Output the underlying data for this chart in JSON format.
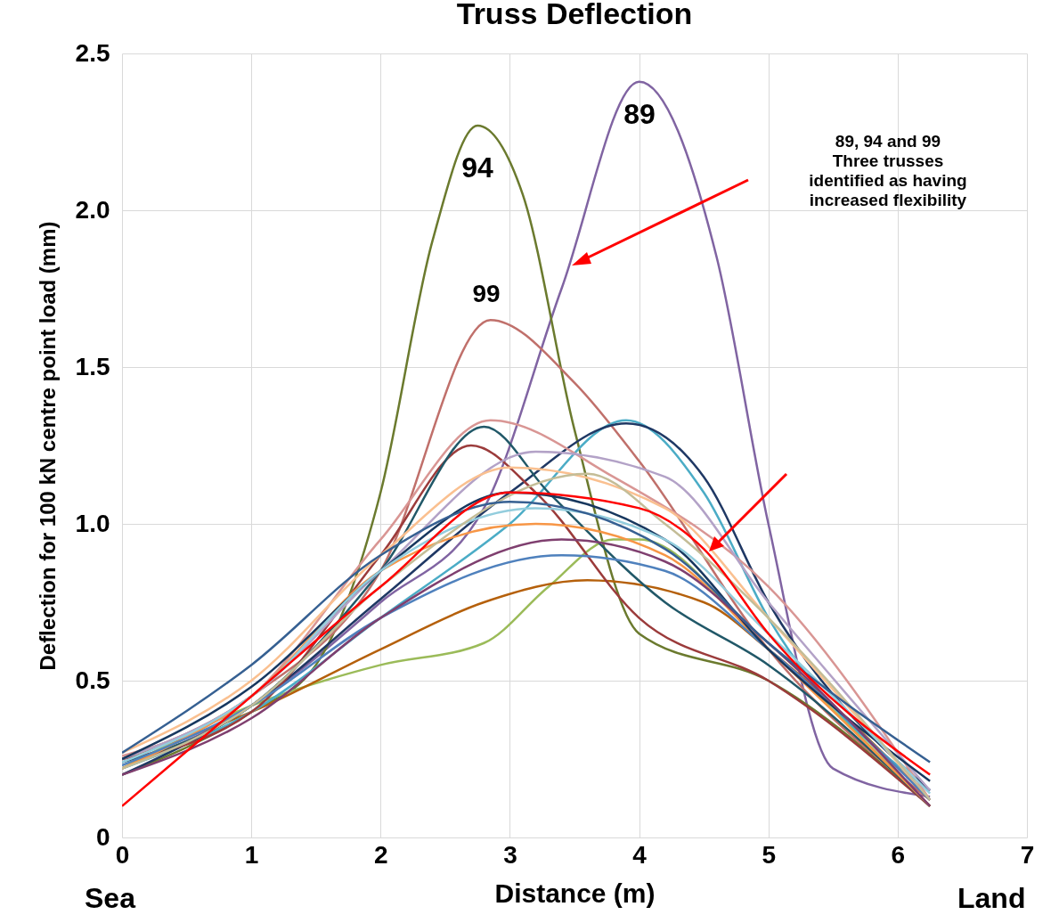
{
  "chart_data": {
    "type": "line",
    "title": "Truss Deflection",
    "xlabel": "Distance (m)",
    "ylabel": "Deflection for 100 kN centre point load (mm)",
    "xlim": [
      0,
      7
    ],
    "xticks": [
      0,
      1,
      2,
      3,
      4,
      5,
      6,
      7
    ],
    "ylim": [
      0,
      2.5
    ],
    "yticks": [
      0,
      0.5,
      {
        "value": 1,
        "label": "1.0"
      },
      1.5,
      {
        "value": 2,
        "label": "2.0"
      },
      2.5
    ],
    "grid": true,
    "series": [
      {
        "color": "#8064a2",
        "x": [
          0,
          1,
          2,
          2.8,
          3.4,
          4,
          4.6,
          5,
          5.5,
          6.25
        ],
        "values": [
          0.22,
          0.42,
          0.75,
          1.05,
          1.75,
          2.41,
          1.85,
          1.0,
          0.22,
          0.13
        ]
      },
      {
        "color": "#6b7a2e",
        "x": [
          0,
          1,
          1.5,
          2,
          2.4,
          2.75,
          3.1,
          3.5,
          4,
          5,
          6.25
        ],
        "values": [
          0.2,
          0.4,
          0.55,
          1.1,
          1.9,
          2.27,
          2.05,
          1.3,
          0.65,
          0.5,
          0.1
        ]
      },
      {
        "color": "#c0706b",
        "x": [
          0,
          1,
          2,
          2.85,
          3.5,
          4,
          5,
          6.25
        ],
        "values": [
          0.25,
          0.45,
          0.85,
          1.65,
          1.45,
          1.2,
          0.6,
          0.12
        ]
      },
      {
        "color": "#9bbb59",
        "x": [
          0,
          1,
          2,
          2.8,
          3.3,
          3.8,
          4,
          5,
          6.25
        ],
        "values": [
          0.22,
          0.42,
          0.55,
          0.62,
          0.8,
          0.95,
          0.95,
          0.6,
          0.1
        ]
      },
      {
        "color": "#b5600b",
        "x": [
          0,
          1,
          2,
          2.8,
          3.6,
          4.5,
          5,
          6.25
        ],
        "values": [
          0.25,
          0.4,
          0.6,
          0.75,
          0.82,
          0.75,
          0.6,
          0.12
        ]
      },
      {
        "color": "#4bacc6",
        "x": [
          0,
          1,
          2,
          3,
          3.9,
          4.5,
          5,
          6.25
        ],
        "values": [
          0.22,
          0.4,
          0.7,
          1.0,
          1.33,
          1.1,
          0.7,
          0.15
        ]
      },
      {
        "color": "#1f3864",
        "x": [
          0,
          1,
          2,
          3,
          3.9,
          4.5,
          5,
          6.25
        ],
        "values": [
          0.2,
          0.42,
          0.76,
          1.1,
          1.32,
          1.15,
          0.75,
          0.15
        ]
      },
      {
        "color": "#9b3b3b",
        "x": [
          0,
          1,
          2,
          2.7,
          3.2,
          4,
          5,
          6.25
        ],
        "values": [
          0.25,
          0.4,
          0.9,
          1.25,
          1.1,
          0.7,
          0.5,
          0.1
        ]
      },
      {
        "color": "#d99694",
        "x": [
          0,
          1,
          2,
          2.85,
          3.8,
          5,
          6.25
        ],
        "values": [
          0.26,
          0.45,
          0.95,
          1.33,
          1.15,
          0.8,
          0.12
        ]
      },
      {
        "color": "#215868",
        "x": [
          0,
          1,
          2,
          2.8,
          3.3,
          4.2,
          5,
          6.25
        ],
        "values": [
          0.24,
          0.42,
          0.85,
          1.31,
          1.1,
          0.75,
          0.55,
          0.1
        ]
      },
      {
        "color": "#b3a2c7",
        "x": [
          0,
          1,
          2,
          3.2,
          4.2,
          5,
          6.25
        ],
        "values": [
          0.25,
          0.45,
          0.85,
          1.23,
          1.15,
          0.75,
          0.15
        ]
      },
      {
        "color": "#fac090",
        "x": [
          0,
          1,
          2,
          3,
          4.2,
          5,
          6.25
        ],
        "values": [
          0.27,
          0.5,
          0.9,
          1.18,
          1.05,
          0.7,
          0.12
        ]
      },
      {
        "color": "#f79646",
        "x": [
          0,
          1,
          2,
          3.2,
          4.2,
          5,
          6.25
        ],
        "values": [
          0.22,
          0.45,
          0.85,
          1.0,
          0.9,
          0.6,
          0.1
        ]
      },
      {
        "color": "#4f81bd",
        "x": [
          0,
          1,
          2,
          3.4,
          4.2,
          5,
          6.25
        ],
        "values": [
          0.23,
          0.42,
          0.7,
          0.9,
          0.85,
          0.6,
          0.12
        ]
      },
      {
        "color": "#17375e",
        "x": [
          0,
          1,
          2,
          3,
          4.2,
          5,
          6.25
        ],
        "values": [
          0.25,
          0.48,
          0.85,
          1.1,
          0.95,
          0.6,
          0.18
        ]
      },
      {
        "color": "#7f3f6f",
        "x": [
          0,
          1,
          2,
          3.4,
          4.2,
          5,
          6.25
        ],
        "values": [
          0.2,
          0.38,
          0.7,
          0.95,
          0.88,
          0.62,
          0.1
        ]
      },
      {
        "color": "#93cddd",
        "x": [
          0,
          1,
          2,
          3.2,
          4.2,
          5,
          6.25
        ],
        "values": [
          0.24,
          0.45,
          0.85,
          1.05,
          0.95,
          0.65,
          0.14
        ]
      },
      {
        "color": "#c4bd97",
        "x": [
          0,
          1,
          2,
          3.6,
          4.2,
          5,
          6.25
        ],
        "values": [
          0.22,
          0.42,
          0.8,
          1.16,
          1.0,
          0.7,
          0.12
        ]
      },
      {
        "color": "#366092",
        "x": [
          0,
          1,
          2,
          3,
          4.2,
          5,
          6.25
        ],
        "values": [
          0.27,
          0.55,
          0.9,
          1.07,
          0.92,
          0.62,
          0.24
        ]
      },
      {
        "color": "#ff0000",
        "x": [
          0,
          1,
          2,
          3,
          4,
          4.5,
          5,
          6.25
        ],
        "values": [
          0.1,
          0.45,
          0.8,
          1.1,
          1.05,
          0.92,
          0.65,
          0.2
        ]
      }
    ],
    "annotations": [
      "94",
      "89",
      "99",
      "89, 94 and 99\nThree trusses\nidentified as having\nincreased flexibility",
      "Sea",
      "Land"
    ]
  }
}
